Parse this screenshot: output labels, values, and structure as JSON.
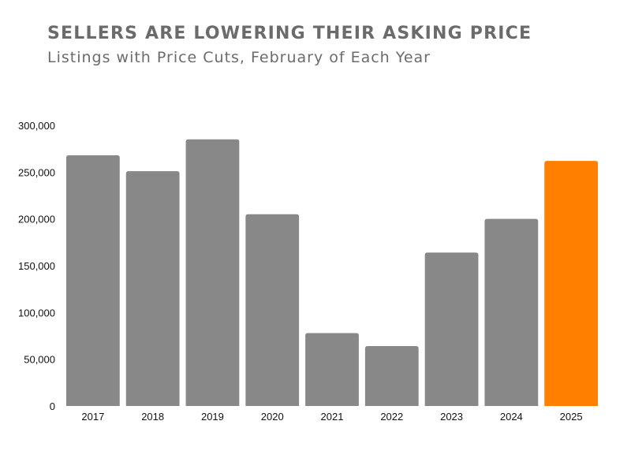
{
  "chart_data": {
    "type": "bar",
    "title": "SELLERS ARE LOWERING THEIR ASKING PRICE",
    "subtitle": "Listings with Price Cuts, February of Each Year",
    "xlabel": "",
    "ylabel": "",
    "categories": [
      "2017",
      "2018",
      "2019",
      "2020",
      "2021",
      "2022",
      "2023",
      "2024",
      "2025"
    ],
    "values": [
      268000,
      251000,
      285000,
      205000,
      78000,
      64000,
      164000,
      200000,
      262000
    ],
    "ylim": [
      0,
      300000
    ],
    "yticks": [
      0,
      50000,
      100000,
      150000,
      200000,
      250000,
      300000
    ],
    "ytick_labels": [
      "0",
      "50,000",
      "100,000",
      "150,000",
      "200,000",
      "250,000",
      "300,000"
    ],
    "grid": false,
    "legend": "none",
    "colors": {
      "bar": "#888888",
      "highlight": "#ff7f00",
      "title": "#6b6b6b",
      "axis_text": "#111111"
    },
    "highlight_category": "2025"
  }
}
